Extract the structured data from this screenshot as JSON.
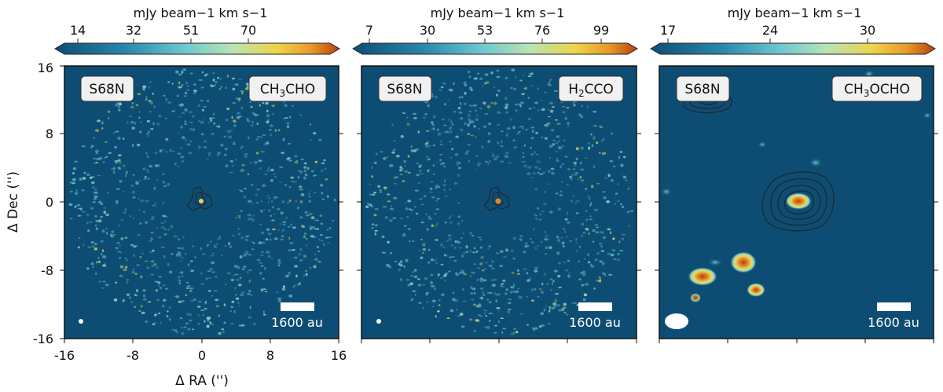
{
  "figure": {
    "ylabel": "Δ Dec ('')",
    "xlabel": "Δ RA ('')",
    "x_ticks": [
      "-16",
      "-8",
      "0",
      "8",
      "16"
    ],
    "y_ticks": [
      "16",
      "8",
      "0",
      "-8",
      "-16"
    ],
    "scalebar_label": "1600 au",
    "colors": {
      "background_map": "#0e4d73",
      "emission_low": "#4aa9c4",
      "emission_mid": "#8fd3c8",
      "emission_high": "#e9d44a",
      "emission_peak": "#c1440e",
      "contour": "#1d2a33"
    }
  },
  "chart_data": [
    {
      "type": "heatmap",
      "panel": "left",
      "source": "S68N",
      "molecule": "CH3CHO",
      "molecule_parts": [
        "CH",
        "3",
        "CHO"
      ],
      "colorbar_label": "mJy beam−1 km s−1",
      "colorbar_ticks": [
        "14",
        "32",
        "51",
        "70"
      ],
      "colorbar_range": [
        5,
        88
      ],
      "xlim": [
        -16,
        16
      ],
      "ylim": [
        -16,
        16
      ],
      "emission": "noisy compact emission at center (0, 0) with surrounding noise ring"
    },
    {
      "type": "heatmap",
      "panel": "middle",
      "source": "S68N",
      "molecule": "H2CCO",
      "molecule_parts": [
        "H",
        "2",
        "CCO"
      ],
      "colorbar_label": "mJy beam−1 km s−1",
      "colorbar_ticks": [
        "7",
        "30",
        "53",
        "76",
        "99"
      ],
      "colorbar_range": [
        -2,
        112
      ],
      "xlim": [
        -16,
        16
      ],
      "ylim": [
        -16,
        16
      ],
      "emission": "compact emission at center (0, 0) with surrounding noise ring"
    },
    {
      "type": "heatmap",
      "panel": "right",
      "source": "S68N",
      "molecule": "CH3OCHO",
      "molecule_parts": [
        "CH",
        "3",
        "OCHO"
      ],
      "colorbar_label": "mJy beam−1 km s−1",
      "colorbar_ticks": [
        "17",
        "24",
        "30"
      ],
      "colorbar_range": [
        15,
        33
      ],
      "xlim": [
        -16,
        16
      ],
      "ylim": [
        -16,
        16
      ],
      "emission": "peak at center (0, 0) with contours; blobs near lower-left at (-11,-9), (-7,-7), (-5,-10), (-13,-11)"
    }
  ]
}
